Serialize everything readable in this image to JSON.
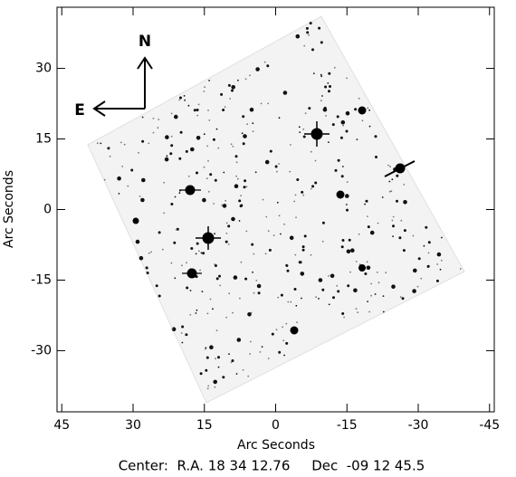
{
  "chart_data": {
    "type": "image",
    "x_label": "Arc Seconds",
    "y_label": "Arc Seconds",
    "xlim": [
      46,
      -46
    ],
    "ylim": [
      -43,
      43
    ],
    "xticks": [
      45,
      30,
      15,
      0,
      -15,
      -30,
      -45
    ],
    "yticks": [
      -30,
      -15,
      0,
      15,
      30
    ],
    "compass": {
      "north": "N",
      "east": "E"
    },
    "footer": "Center:  R.A. 18 34 12.76     Dec  -09 12 45.5"
  }
}
